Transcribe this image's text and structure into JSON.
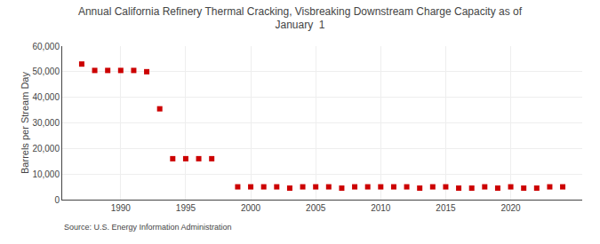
{
  "chart_data": {
    "type": "scatter",
    "title": "Annual California Refinery Thermal Cracking, Visbreaking Downstream Charge Capacity as of\nJanuary  1",
    "ylabel": "Barrels per Stream Day",
    "source": "Source: U.S. Energy Information Administration",
    "color": "#cc0000",
    "marker": "square",
    "x": [
      1987,
      1988,
      1989,
      1990,
      1991,
      1992,
      1993,
      1994,
      1995,
      1996,
      1997,
      1999,
      2000,
      2001,
      2002,
      2003,
      2004,
      2005,
      2006,
      2007,
      2008,
      2009,
      2010,
      2011,
      2012,
      2013,
      2014,
      2015,
      2016,
      2017,
      2018,
      2019,
      2020,
      2021,
      2022,
      2023,
      2024
    ],
    "values": [
      53000,
      50500,
      50500,
      50500,
      50500,
      50000,
      35500,
      16000,
      16000,
      16000,
      16000,
      5000,
      5000,
      5000,
      5000,
      4500,
      5000,
      5000,
      5000,
      4500,
      5000,
      5000,
      5000,
      5000,
      5000,
      4500,
      5000,
      5000,
      4500,
      4500,
      5000,
      4500,
      5000,
      4500,
      4500,
      5000,
      5000
    ],
    "xlim": [
      1985.5,
      2025.5
    ],
    "xticks": [
      1990,
      1995,
      2000,
      2005,
      2010,
      2015,
      2020
    ],
    "ylim": [
      0,
      60000
    ],
    "yticks": [
      0,
      {
        "value": 10000,
        "label": "10,000"
      },
      {
        "value": 20000,
        "label": "20,000"
      },
      {
        "value": 30000,
        "label": "30,000"
      },
      {
        "value": 40000,
        "label": "40,000"
      },
      {
        "value": 50000,
        "label": "50,000"
      },
      {
        "value": 60000,
        "label": "60,000"
      }
    ],
    "grid": true
  }
}
